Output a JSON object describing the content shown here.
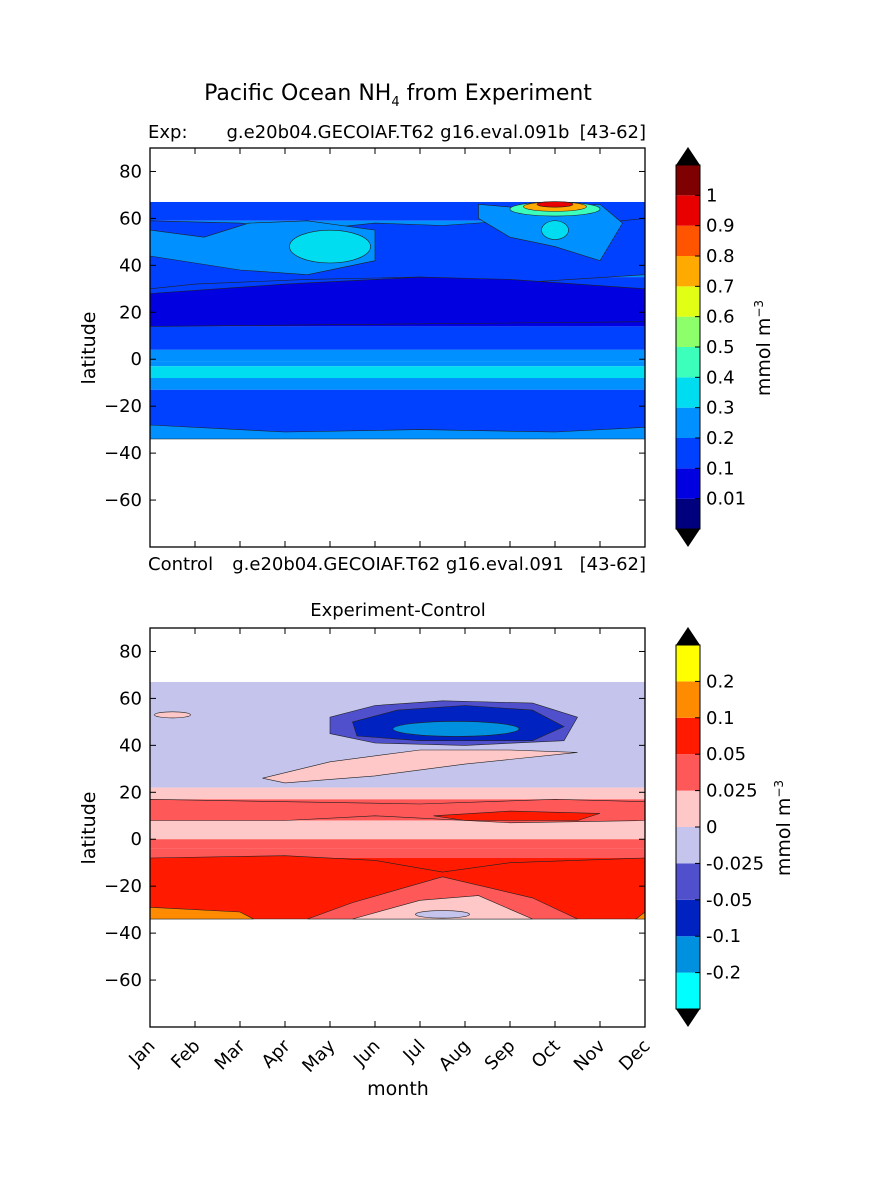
{
  "figure": {
    "title": "Pacific Ocean NH",
    "title_subscript": "4",
    "title_suffix": " from Experiment"
  },
  "chart_data": [
    {
      "type": "contour",
      "panel": "experiment",
      "left_label": "Exp:",
      "center_label": "g.e20b04.GECOIAF.T62 g16.eval.091b",
      "right_label": "[43-62]",
      "bottom_left_label": "Control",
      "bottom_center_label": "g.e20b04.GECOIAF.T62 g16.eval.091",
      "bottom_right_label": "[43-62]",
      "ylabel": "latitude",
      "ylim": [
        -80,
        90
      ],
      "yticks": [
        "80",
        "60",
        "40",
        "20",
        "0",
        "−20",
        "−40",
        "−60"
      ],
      "yticks_values": [
        80,
        60,
        40,
        20,
        0,
        -20,
        -40,
        -60
      ],
      "xlim": [
        0,
        11
      ],
      "data_lat_range": [
        -34,
        67
      ],
      "colorbar": {
        "label": "mmol m",
        "label_sup": "−3",
        "levels": [
          0,
          0.01,
          0.1,
          0.2,
          0.3,
          0.4,
          0.5,
          0.6,
          0.7,
          0.8,
          0.9,
          1,
          1.1
        ],
        "tick_labels": [
          "0.01",
          "0.1",
          "0.2",
          "0.3",
          "0.4",
          "0.5",
          "0.6",
          "0.7",
          "0.8",
          "0.9",
          "1"
        ],
        "colors": [
          "#00007f",
          "#0000e0",
          "#0040ff",
          "#0090ff",
          "#00ddf0",
          "#3cffbc",
          "#8cff6a",
          "#e0ff14",
          "#ffaa00",
          "#ff5400",
          "#e80000",
          "#7f0000"
        ],
        "extend_color": "#000000"
      },
      "bands": [
        {
          "lat_top": 67,
          "lat_bot": 59,
          "level": 2
        },
        {
          "lat_top": 59,
          "lat_bot": 47,
          "level": 3
        },
        {
          "lat_top": 47,
          "lat_bot": 35,
          "level": 3
        },
        {
          "lat_top": 35,
          "lat_bot": 28,
          "level": 2
        },
        {
          "lat_top": 28,
          "lat_bot": 14,
          "level": 1
        },
        {
          "lat_top": 14,
          "lat_bot": 4,
          "level": 2
        },
        {
          "lat_top": 4,
          "lat_bot": -1,
          "level": 3
        },
        {
          "lat_top": -1,
          "lat_bot": -3,
          "level": 3
        },
        {
          "lat_top": -3,
          "lat_bot": -8,
          "level": 4
        },
        {
          "lat_top": -8,
          "lat_bot": -13,
          "level": 3
        },
        {
          "lat_top": -13,
          "lat_bot": -31,
          "level": 2
        },
        {
          "lat_top": -31,
          "lat_bot": -34,
          "level": 3
        }
      ]
    },
    {
      "type": "contour",
      "panel": "difference",
      "title": "Experiment-Control",
      "ylabel": "latitude",
      "xlabel": "month",
      "ylim": [
        -80,
        90
      ],
      "yticks": [
        "80",
        "60",
        "40",
        "20",
        "0",
        "−20",
        "−40",
        "−60"
      ],
      "yticks_values": [
        80,
        60,
        40,
        20,
        0,
        -20,
        -40,
        -60
      ],
      "xticks": [
        "Jan",
        "Feb",
        "Mar",
        "Apr",
        "May",
        "Jun",
        "Jul",
        "Aug",
        "Sep",
        "Oct",
        "Nov",
        "Dec"
      ],
      "xlim": [
        0,
        11
      ],
      "data_lat_range": [
        -34,
        67
      ],
      "colorbar": {
        "label": "mmol m",
        "label_sup": "−3",
        "levels": [
          -0.3,
          -0.2,
          -0.1,
          -0.05,
          -0.025,
          0,
          0.025,
          0.05,
          0.1,
          0.2,
          0.3
        ],
        "tick_labels": [
          "-0.2",
          "-0.1",
          "-0.05",
          "-0.025",
          "0",
          "0.025",
          "0.05",
          "0.1",
          "0.2"
        ],
        "colors": [
          "#00ffff",
          "#0090e0",
          "#0022c0",
          "#5050cc",
          "#c4c4ec",
          "#ffc8c8",
          "#ff5858",
          "#ff1a00",
          "#ff8c00",
          "#ffff00"
        ],
        "extend_color": "#000000"
      },
      "bands": [
        {
          "lat_top": 67,
          "lat_bot": 22,
          "level": 4
        },
        {
          "lat_top": 22,
          "lat_bot": 17,
          "level": 5
        },
        {
          "lat_top": 17,
          "lat_bot": 8,
          "level": 6
        },
        {
          "lat_top": 8,
          "lat_bot": 0,
          "level": 5
        },
        {
          "lat_top": 0,
          "lat_bot": -4,
          "level": 6
        },
        {
          "lat_top": -4,
          "lat_bot": -8,
          "level": 6
        },
        {
          "lat_top": -8,
          "lat_bot": -34,
          "level": 7
        }
      ]
    }
  ]
}
